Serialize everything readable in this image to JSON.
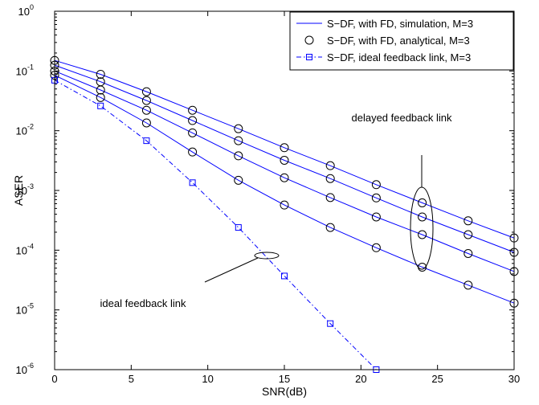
{
  "chart_data": {
    "type": "line",
    "xlabel": "SNR(dB)",
    "ylabel": "ASER",
    "xlim": [
      0,
      30
    ],
    "ylim": [
      1e-06,
      1
    ],
    "yscale": "log",
    "x_ticks": [
      0,
      5,
      10,
      15,
      20,
      25,
      30
    ],
    "x_tick_labels": [
      "0",
      "5",
      "10",
      "15",
      "20",
      "25",
      "30"
    ],
    "y_ticks": [
      1e-06,
      1e-05,
      0.0001,
      0.001,
      0.01,
      0.1,
      1
    ],
    "y_tick_labels": [
      {
        "base": "10",
        "exp": "-6"
      },
      {
        "base": "10",
        "exp": "-5"
      },
      {
        "base": "10",
        "exp": "-4"
      },
      {
        "base": "10",
        "exp": "-3"
      },
      {
        "base": "10",
        "exp": "-2"
      },
      {
        "base": "10",
        "exp": "-1"
      },
      {
        "base": "10",
        "exp": "0"
      }
    ],
    "grid": "off",
    "legend_position": "top-right",
    "legend": [
      {
        "label": "S−DF, with FD, simulation, M=3",
        "style": "solid",
        "marker": "none"
      },
      {
        "label": "S−DF, with FD, analytical, M=3",
        "style": "none",
        "marker": "circle"
      },
      {
        "label": "S−DF, ideal feedback link, M=3",
        "style": "dashdot",
        "marker": "square"
      }
    ],
    "colors": {
      "line": "#0000ff",
      "circle": "#000000",
      "axis": "#000000"
    },
    "series": [
      {
        "x": [
          0,
          3,
          6,
          9,
          12,
          15,
          18,
          21,
          24,
          27,
          30
        ],
        "values": [
          0.15,
          0.088,
          0.045,
          0.022,
          0.0108,
          0.0052,
          0.0026,
          0.00125,
          0.00062,
          0.00031,
          0.00016
        ]
      },
      {
        "x": [
          0,
          3,
          6,
          9,
          12,
          15,
          18,
          21,
          24,
          27,
          30
        ],
        "values": [
          0.125,
          0.066,
          0.032,
          0.0148,
          0.0068,
          0.0032,
          0.00158,
          0.00075,
          0.00036,
          0.000182,
          9.2e-05
        ]
      },
      {
        "x": [
          0,
          3,
          6,
          9,
          12,
          15,
          18,
          21,
          24,
          27,
          30
        ],
        "values": [
          0.1,
          0.048,
          0.022,
          0.0092,
          0.0038,
          0.00163,
          0.00076,
          0.00036,
          0.000182,
          8.8e-05,
          4.4e-05
        ]
      },
      {
        "x": [
          0,
          3,
          6,
          9,
          12,
          15,
          18,
          21,
          24,
          27,
          30
        ],
        "values": [
          0.085,
          0.036,
          0.0135,
          0.0044,
          0.00148,
          0.00057,
          0.00024,
          0.00011,
          5.2e-05,
          2.6e-05,
          1.3e-05
        ]
      },
      {
        "x": [
          0,
          3,
          6,
          9,
          12,
          15,
          18,
          21
        ],
        "values": [
          0.07,
          0.026,
          0.0068,
          0.00135,
          0.00024,
          3.7e-05,
          5.9e-06,
          1e-06
        ]
      }
    ],
    "annotations": {
      "delayed": "delayed feedback link",
      "ideal": "ideal feedback link"
    }
  }
}
